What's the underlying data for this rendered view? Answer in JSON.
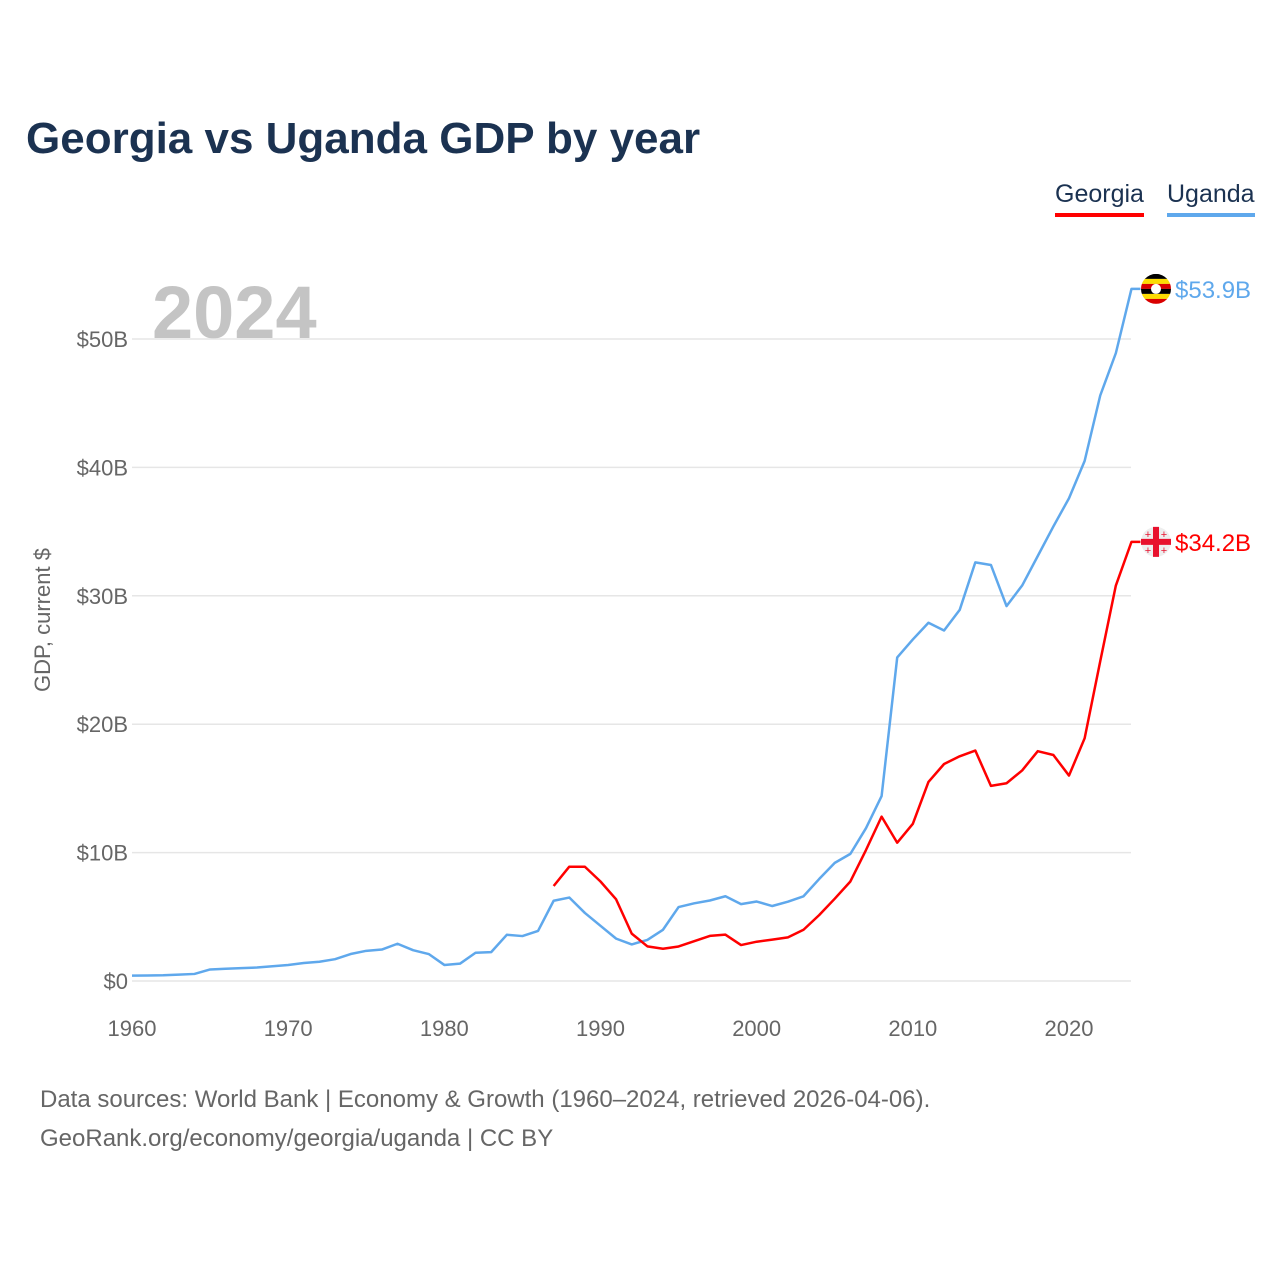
{
  "title": "Georgia vs Uganda GDP by year",
  "year_label": "2024",
  "legend": [
    {
      "name": "Georgia",
      "color": "#ff0000"
    },
    {
      "name": "Uganda",
      "color": "#5fa8ec"
    }
  ],
  "footer": {
    "line1": "Data sources: World Bank | Economy & Growth (1960–2024, retrieved 2026-04-06).",
    "line2": "GeoRank.org/economy/georgia/uganda | CC BY"
  },
  "chart_data": {
    "type": "line",
    "title": "Georgia vs Uganda GDP by year",
    "xlabel": "",
    "ylabel": "GDP, current $",
    "xlim": [
      1960,
      2024
    ],
    "ylim": [
      0,
      55
    ],
    "x_ticks": [
      1960,
      1970,
      1980,
      1990,
      2000,
      2010,
      2020
    ],
    "y_ticks": [
      {
        "v": 0,
        "label": "$0"
      },
      {
        "v": 10,
        "label": "$10B"
      },
      {
        "v": 20,
        "label": "$20B"
      },
      {
        "v": 30,
        "label": "$30B"
      },
      {
        "v": 40,
        "label": "$40B"
      },
      {
        "v": 50,
        "label": "$50B"
      }
    ],
    "grid": true,
    "legend_position": "top-right",
    "series": [
      {
        "name": "Uganda",
        "color": "#5fa8ec",
        "flag": "uganda-flag",
        "end_label": "$53.9B",
        "start": 1960,
        "values": [
          0.42,
          0.43,
          0.45,
          0.5,
          0.55,
          0.9,
          0.95,
          1.0,
          1.05,
          1.15,
          1.25,
          1.4,
          1.5,
          1.7,
          2.1,
          2.35,
          2.45,
          2.9,
          2.4,
          2.1,
          1.25,
          1.35,
          2.2,
          2.25,
          3.6,
          3.5,
          3.9,
          6.25,
          6.5,
          5.3,
          4.3,
          3.3,
          2.85,
          3.2,
          3.99,
          5.76,
          6.05,
          6.27,
          6.6,
          5.99,
          6.19,
          5.84,
          6.18,
          6.6,
          7.94,
          9.2,
          9.9,
          11.9,
          14.4,
          25.2,
          26.6,
          27.9,
          27.3,
          28.9,
          32.6,
          32.4,
          29.2,
          30.8,
          33.1,
          35.4,
          37.6,
          40.5,
          45.6,
          48.9,
          53.9
        ]
      },
      {
        "name": "Georgia",
        "color": "#ff0000",
        "flag": "georgia-flag",
        "end_label": "$34.2B",
        "start": 1987,
        "values": [
          7.4,
          8.9,
          8.9,
          7.75,
          6.36,
          3.69,
          2.7,
          2.51,
          2.69,
          3.1,
          3.51,
          3.61,
          2.8,
          3.06,
          3.22,
          3.4,
          3.99,
          5.13,
          6.41,
          7.75,
          10.2,
          12.8,
          10.77,
          12.24,
          15.5,
          16.9,
          17.5,
          17.95,
          15.2,
          15.4,
          16.4,
          17.9,
          17.6,
          16.0,
          18.9,
          24.9,
          30.8,
          34.2
        ]
      }
    ]
  }
}
